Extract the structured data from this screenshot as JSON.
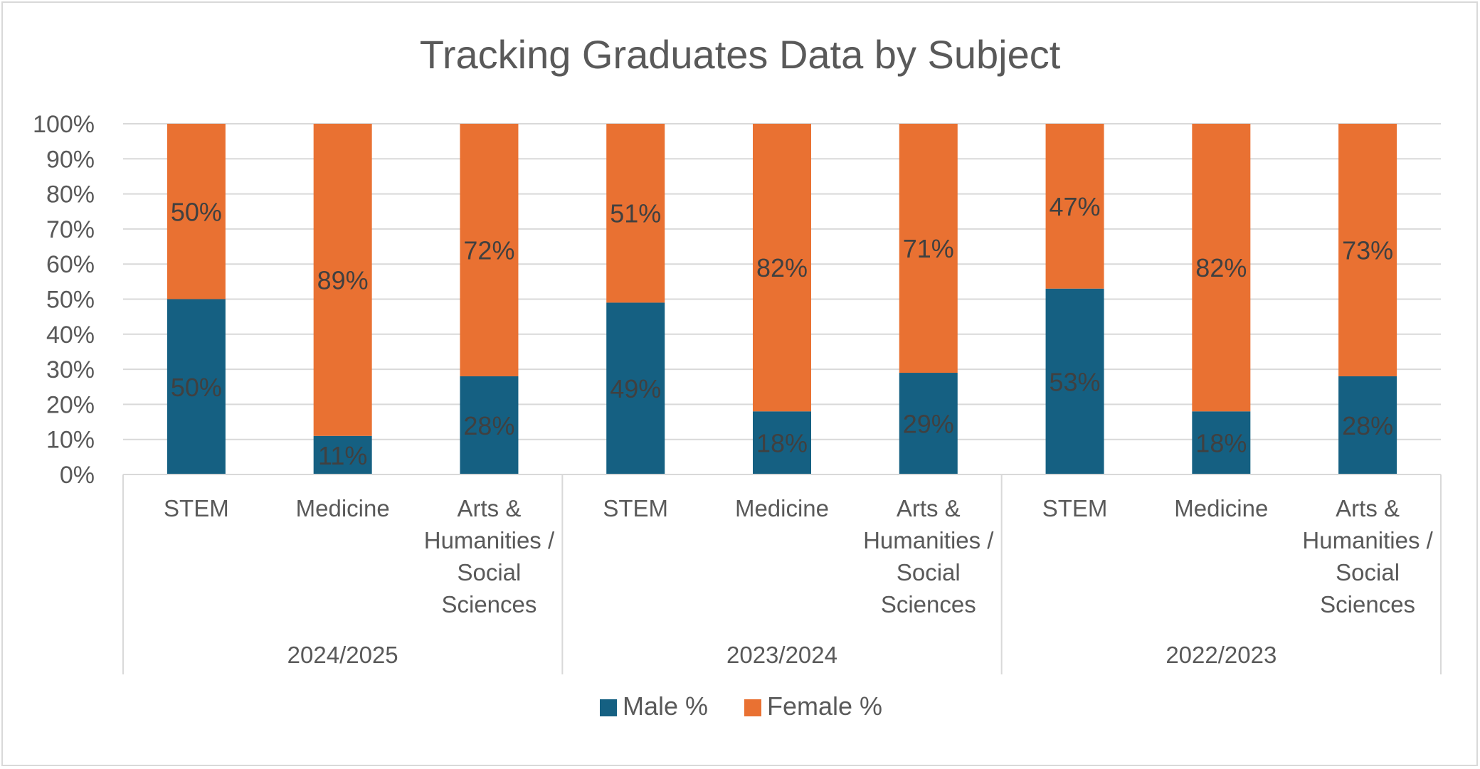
{
  "chart_data": {
    "type": "bar",
    "stacked": true,
    "percent_stacked": true,
    "title": "Tracking Graduates Data by Subject",
    "xlabel": "",
    "ylabel": "",
    "ylim": [
      0,
      100
    ],
    "y_ticks": [
      "0%",
      "10%",
      "20%",
      "30%",
      "40%",
      "50%",
      "60%",
      "70%",
      "80%",
      "90%",
      "100%"
    ],
    "grid": true,
    "legend_position": "bottom",
    "groups": [
      {
        "label": "2024/2025",
        "categories": [
          {
            "lines": [
              "STEM"
            ],
            "male": 50,
            "female": 50,
            "male_label": "50%",
            "female_label": "50%"
          },
          {
            "lines": [
              "Medicine"
            ],
            "male": 11,
            "female": 89,
            "male_label": "11%",
            "female_label": "89%"
          },
          {
            "lines": [
              "Arts &",
              "Humanities /",
              "Social",
              "Sciences"
            ],
            "male": 28,
            "female": 72,
            "male_label": "28%",
            "female_label": "72%"
          }
        ]
      },
      {
        "label": "2023/2024",
        "categories": [
          {
            "lines": [
              "STEM"
            ],
            "male": 49,
            "female": 51,
            "male_label": "49%",
            "female_label": "51%"
          },
          {
            "lines": [
              "Medicine"
            ],
            "male": 18,
            "female": 82,
            "male_label": "18%",
            "female_label": "82%"
          },
          {
            "lines": [
              "Arts &",
              "Humanities /",
              "Social",
              "Sciences"
            ],
            "male": 29,
            "female": 71,
            "male_label": "29%",
            "female_label": "71%"
          }
        ]
      },
      {
        "label": "2022/2023",
        "categories": [
          {
            "lines": [
              "STEM"
            ],
            "male": 53,
            "female": 47,
            "male_label": "53%",
            "female_label": "47%"
          },
          {
            "lines": [
              "Medicine"
            ],
            "male": 18,
            "female": 82,
            "male_label": "18%",
            "female_label": "82%"
          },
          {
            "lines": [
              "Arts &",
              "Humanities /",
              "Social",
              "Sciences"
            ],
            "male": 28,
            "female": 73,
            "male_label": "28%",
            "female_label": "73%"
          }
        ]
      }
    ],
    "series": [
      {
        "name": "Male %",
        "key": "male",
        "color": "#156082"
      },
      {
        "name": "Female %",
        "key": "female",
        "color": "#E97132"
      }
    ]
  }
}
